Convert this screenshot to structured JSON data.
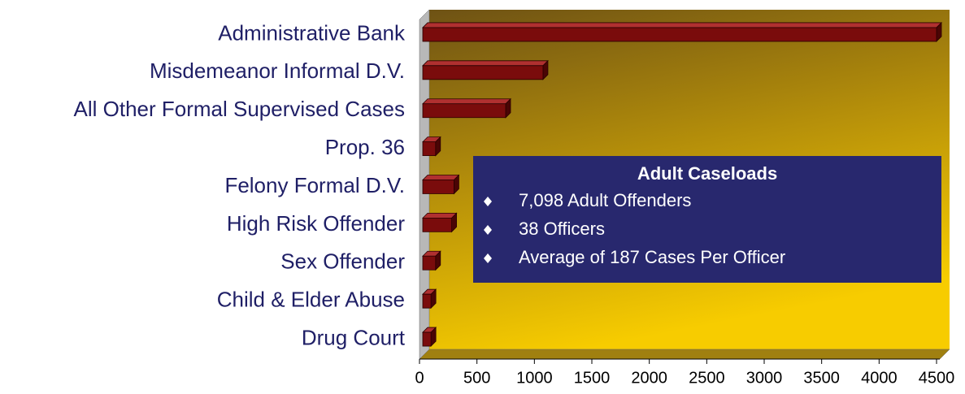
{
  "chart_data": {
    "type": "bar3d_horizontal",
    "categories": [
      "Administrative Bank",
      "Misdemeanor Informal D.V.",
      "All Other Formal Supervised Cases",
      "Prop. 36",
      "Felony Formal D.V.",
      "High Risk Offender",
      "Sex Offender",
      "Child & Elder Abuse",
      "Drug Court"
    ],
    "values": [
      4500,
      1075,
      750,
      140,
      300,
      280,
      140,
      100,
      100
    ],
    "color": "#7a0c0c",
    "xlim": [
      0,
      4500
    ],
    "xticks": [
      0,
      500,
      1000,
      1500,
      2000,
      2500,
      3000,
      3500,
      4000,
      4500
    ],
    "annotation": {
      "title": "Adult Caseloads",
      "items": [
        "7,098 Adult Offenders",
        "38 Officers",
        "Average of 187 Cases Per Officer"
      ]
    }
  }
}
